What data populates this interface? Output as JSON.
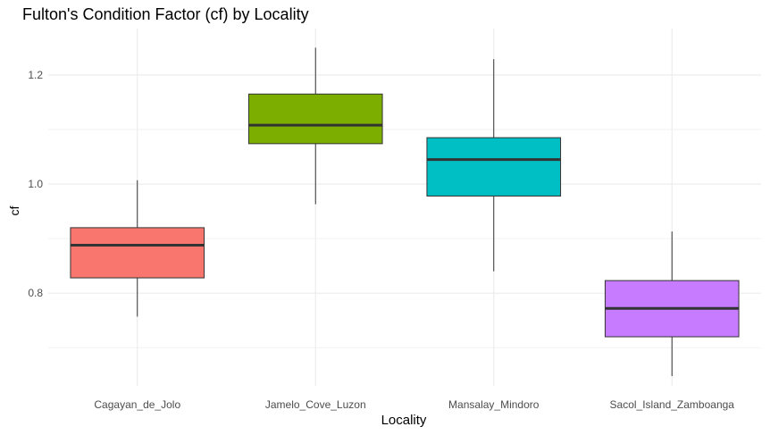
{
  "chart_data": {
    "type": "boxplot",
    "title": "Fulton's Condition Factor (cf) by Locality",
    "xlabel": "Locality",
    "ylabel": "cf",
    "ylim": [
      0.63,
      1.285
    ],
    "y_ticks": [
      0.8,
      1.0,
      1.2
    ],
    "y_tick_labels": [
      "0.8",
      "1.0",
      "1.2"
    ],
    "grid": true,
    "legend": "none",
    "categories": [
      "Cagayan_de_Jolo",
      "Jamelo_Cove_Luzon",
      "Mansalay_Mindoro",
      "Sacol_Island_Zamboanga"
    ],
    "boxes": [
      {
        "category": "Cagayan_de_Jolo",
        "min": 0.757,
        "q1": 0.828,
        "median": 0.888,
        "q3": 0.92,
        "max": 1.007,
        "color": "#F8766D"
      },
      {
        "category": "Jamelo_Cove_Luzon",
        "min": 0.963,
        "q1": 1.074,
        "median": 1.108,
        "q3": 1.165,
        "max": 1.25,
        "color": "#7CAE00"
      },
      {
        "category": "Mansalay_Mindoro",
        "min": 0.84,
        "q1": 0.978,
        "median": 1.045,
        "q3": 1.085,
        "max": 1.229,
        "color": "#00BFC4"
      },
      {
        "category": "Sacol_Island_Zamboanga",
        "min": 0.648,
        "q1": 0.72,
        "median": 0.772,
        "q3": 0.823,
        "max": 0.913,
        "color": "#C77CFF"
      }
    ]
  }
}
